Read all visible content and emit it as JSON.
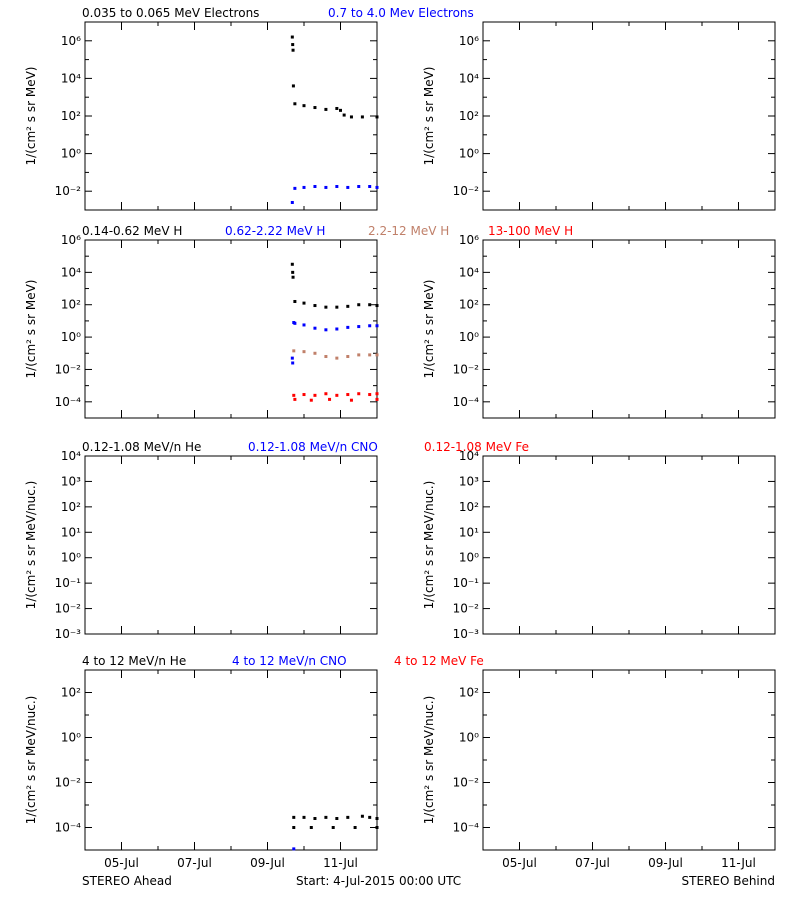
{
  "footer": {
    "left": "STEREO Ahead",
    "center": "Start:  4-Jul-2015 00:00 UTC",
    "right": "STEREO Behind"
  },
  "colors": {
    "black": "#000000",
    "blue": "#0000ff",
    "brown": "#c0806a",
    "red": "#ff0000"
  },
  "chart_data": [
    {
      "id": "electrons",
      "type": "scatter",
      "ylabel": "1/(cm² s sr MeV)",
      "y_scale": "log",
      "ylim_exp": [
        -3,
        7
      ],
      "ytick_exps": [
        -2,
        0,
        2,
        4,
        6
      ],
      "x_unit": "days since start",
      "xlim": [
        0,
        8
      ],
      "xtick_labels": [
        "05-Jul",
        "07-Jul",
        "09-Jul",
        "11-Jul"
      ],
      "xtick_values": [
        1,
        3,
        5,
        7
      ],
      "legend": [
        {
          "label": "0.035 to 0.065 MeV Electrons",
          "color": "#000000"
        },
        {
          "label": "0.7 to 4.0 Mev Electrons",
          "color": "#0000ff"
        }
      ],
      "ahead_series": [
        {
          "name": "0.035 to 0.065 MeV Electrons",
          "color": "#000000",
          "points": [
            [
              5.68,
              6.2
            ],
            [
              5.69,
              5.8
            ],
            [
              5.7,
              5.5
            ],
            [
              5.71,
              3.6
            ],
            [
              5.75,
              2.65
            ],
            [
              6.0,
              2.55
            ],
            [
              6.3,
              2.45
            ],
            [
              6.6,
              2.35
            ],
            [
              6.9,
              2.4
            ],
            [
              7.0,
              2.3
            ],
            [
              7.1,
              2.05
            ],
            [
              7.3,
              1.95
            ],
            [
              7.6,
              1.95
            ],
            [
              8.0,
              1.95
            ]
          ]
        },
        {
          "name": "0.7 to 4.0 Mev Electrons",
          "color": "#0000ff",
          "points": [
            [
              5.68,
              -2.6
            ],
            [
              5.75,
              -1.85
            ],
            [
              6.0,
              -1.8
            ],
            [
              6.3,
              -1.75
            ],
            [
              6.6,
              -1.8
            ],
            [
              6.9,
              -1.75
            ],
            [
              7.2,
              -1.8
            ],
            [
              7.5,
              -1.75
            ],
            [
              7.8,
              -1.75
            ],
            [
              8.0,
              -1.8
            ]
          ]
        }
      ]
    },
    {
      "id": "protons",
      "type": "scatter",
      "ylabel": "1/(cm² s sr MeV)",
      "y_scale": "log",
      "ylim_exp": [
        -5,
        6
      ],
      "ytick_exps": [
        -4,
        -2,
        0,
        2,
        4,
        6
      ],
      "x_unit": "days since start",
      "xlim": [
        0,
        8
      ],
      "xtick_labels": [
        "05-Jul",
        "07-Jul",
        "09-Jul",
        "11-Jul"
      ],
      "xtick_values": [
        1,
        3,
        5,
        7
      ],
      "legend": [
        {
          "label": "0.14-0.62 MeV H",
          "color": "#000000"
        },
        {
          "label": "0.62-2.22 MeV H",
          "color": "#0000ff"
        },
        {
          "label": "2.2-12 MeV H",
          "color": "#c0806a"
        },
        {
          "label": "13-100 MeV H",
          "color": "#ff0000"
        }
      ],
      "ahead_series": [
        {
          "name": "0.14-0.62 MeV H",
          "color": "#000000",
          "points": [
            [
              5.68,
              4.5
            ],
            [
              5.69,
              4.0
            ],
            [
              5.7,
              3.7
            ],
            [
              5.75,
              2.2
            ],
            [
              6.0,
              2.1
            ],
            [
              6.3,
              1.95
            ],
            [
              6.6,
              1.85
            ],
            [
              6.9,
              1.85
            ],
            [
              7.2,
              1.9
            ],
            [
              7.5,
              2.0
            ],
            [
              7.8,
              2.0
            ],
            [
              8.0,
              1.95
            ]
          ]
        },
        {
          "name": "0.62-2.22 MeV H",
          "color": "#0000ff",
          "points": [
            [
              5.68,
              -1.3
            ],
            [
              5.69,
              -1.6
            ],
            [
              5.72,
              0.9
            ],
            [
              5.75,
              0.85
            ],
            [
              6.0,
              0.75
            ],
            [
              6.3,
              0.55
            ],
            [
              6.6,
              0.45
            ],
            [
              6.9,
              0.5
            ],
            [
              7.2,
              0.6
            ],
            [
              7.5,
              0.65
            ],
            [
              7.8,
              0.7
            ],
            [
              8.0,
              0.7
            ]
          ]
        },
        {
          "name": "2.2-12 MeV H",
          "color": "#c0806a",
          "points": [
            [
              5.72,
              -0.85
            ],
            [
              6.0,
              -0.9
            ],
            [
              6.3,
              -1.0
            ],
            [
              6.6,
              -1.2
            ],
            [
              6.9,
              -1.3
            ],
            [
              7.2,
              -1.2
            ],
            [
              7.5,
              -1.1
            ],
            [
              7.8,
              -1.1
            ],
            [
              8.0,
              -1.1
            ]
          ]
        },
        {
          "name": "13-100 MeV H",
          "color": "#ff0000",
          "points": [
            [
              5.72,
              -3.6
            ],
            [
              6.0,
              -3.55
            ],
            [
              6.3,
              -3.6
            ],
            [
              6.6,
              -3.5
            ],
            [
              6.9,
              -3.6
            ],
            [
              7.2,
              -3.55
            ],
            [
              7.5,
              -3.5
            ],
            [
              7.8,
              -3.55
            ],
            [
              8.0,
              -3.5
            ],
            [
              5.75,
              -3.85
            ],
            [
              6.2,
              -3.9
            ],
            [
              6.7,
              -3.85
            ],
            [
              7.3,
              -3.9
            ],
            [
              8.0,
              -3.85
            ]
          ]
        }
      ]
    },
    {
      "id": "low-energy-ions",
      "type": "scatter",
      "ylabel": "1/(cm² s sr MeV/nuc.)",
      "y_scale": "log",
      "ylim_exp": [
        -3,
        4
      ],
      "ytick_labels": [
        "10⁻³",
        "10⁻²",
        "10⁻¹",
        "10⁰",
        "10¹",
        "10²",
        "10³",
        "10⁴"
      ],
      "x_unit": "days since start",
      "xlim": [
        0,
        8
      ],
      "xtick_labels": [
        "05-Jul",
        "07-Jul",
        "09-Jul",
        "11-Jul"
      ],
      "xtick_values": [
        1,
        3,
        5,
        7
      ],
      "legend": [
        {
          "label": "0.12-1.08 MeV/n He",
          "color": "#000000"
        },
        {
          "label": "0.12-1.08 MeV/n CNO",
          "color": "#0000ff"
        },
        {
          "label": "0.12-1.08 MeV Fe",
          "color": "#ff0000"
        }
      ],
      "ahead_series": []
    },
    {
      "id": "high-energy-ions",
      "type": "scatter",
      "ylabel": "1/(cm² s sr MeV/nuc.)",
      "y_scale": "log",
      "ylim_exp": [
        -5,
        3
      ],
      "ytick_exps": [
        -4,
        -2,
        0,
        2
      ],
      "x_unit": "days since start",
      "xlim": [
        0,
        8
      ],
      "xtick_labels": [
        "05-Jul",
        "07-Jul",
        "09-Jul",
        "11-Jul"
      ],
      "xtick_values": [
        1,
        3,
        5,
        7
      ],
      "legend": [
        {
          "label": "4 to 12 MeV/n He",
          "color": "#000000"
        },
        {
          "label": "4 to 12 MeV/n CNO",
          "color": "#0000ff"
        },
        {
          "label": "4 to 12 MeV Fe",
          "color": "#ff0000"
        }
      ],
      "ahead_series": [
        {
          "name": "4 to 12 MeV/n He",
          "color": "#000000",
          "points": [
            [
              5.72,
              -3.55
            ],
            [
              6.0,
              -3.55
            ],
            [
              6.3,
              -3.6
            ],
            [
              6.6,
              -3.55
            ],
            [
              6.9,
              -3.6
            ],
            [
              7.2,
              -3.55
            ],
            [
              7.6,
              -3.5
            ],
            [
              7.8,
              -3.55
            ],
            [
              8.0,
              -3.6
            ],
            [
              5.72,
              -4.0
            ],
            [
              6.2,
              -4.0
            ],
            [
              6.8,
              -4.0
            ],
            [
              7.4,
              -4.0
            ],
            [
              8.0,
              -4.0
            ]
          ]
        },
        {
          "name": "4 to 12 MeV/n CNO",
          "color": "#0000ff",
          "points": [
            [
              5.72,
              -4.95
            ]
          ]
        }
      ]
    }
  ]
}
